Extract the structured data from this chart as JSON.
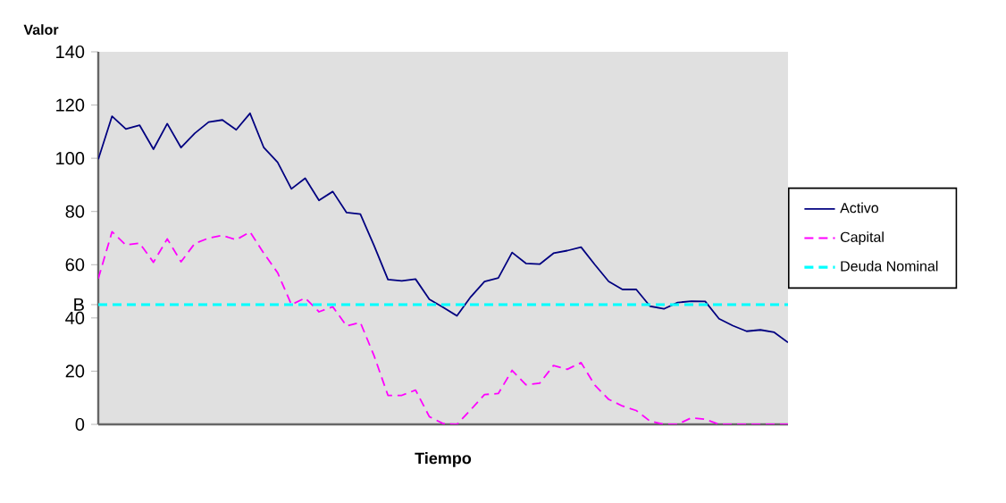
{
  "chart_data": {
    "type": "line",
    "xlabel": "Tiempo",
    "ylabel": "Valor",
    "categories": [
      null,
      null,
      null,
      null,
      null,
      null,
      null,
      null,
      null,
      null,
      null,
      null,
      null,
      null,
      null,
      null,
      null,
      null,
      null,
      null,
      null,
      null,
      null,
      null,
      null,
      null,
      null,
      null,
      null,
      null,
      null,
      null,
      null,
      null,
      null,
      null,
      null,
      null,
      null,
      null,
      null,
      null,
      null,
      null,
      null,
      null,
      null,
      null,
      null,
      null,
      null
    ],
    "ylim": [
      0,
      140
    ],
    "yticks": [
      0,
      20,
      40,
      {
        "value": 45,
        "label": "B"
      },
      60,
      80,
      100,
      120,
      140
    ],
    "grid": false,
    "legend": "right",
    "marker": "none",
    "series": [
      {
        "name": "Activo",
        "color": "#000080",
        "line_style": "solid",
        "values": [
          99.6,
          115.8,
          111,
          112.4,
          103.4,
          113,
          104,
          109.4,
          113.6,
          114.4,
          110.7,
          116.9,
          104,
          98.5,
          88.5,
          92.5,
          84.2,
          87.5,
          79.6,
          79,
          67.1,
          54.4,
          53.9,
          54.6,
          47,
          44,
          40.8,
          47.9,
          53.7,
          55,
          64.6,
          60.5,
          60.2,
          64.3,
          65.3,
          66.6,
          60,
          53.7,
          50.7,
          50.7,
          44.4,
          43.4,
          45.8,
          46.3,
          46.2,
          39.7,
          37.1,
          35,
          35.5,
          34.6,
          30.8
        ]
      },
      {
        "name": "Capital",
        "color": "#ff00ff",
        "line_style": "dashed",
        "values": [
          54.8,
          72.4,
          67.4,
          68.1,
          60.9,
          69.7,
          61.1,
          68,
          70,
          71,
          69.4,
          72.3,
          64.3,
          57,
          45,
          47.5,
          42.3,
          44.2,
          37,
          38.3,
          25.7,
          10.9,
          10.9,
          12.9,
          2.9,
          0.3,
          0,
          5.5,
          11.2,
          11.6,
          20.3,
          14.9,
          15.5,
          22.1,
          20.7,
          23.2,
          14.7,
          9.4,
          6.9,
          5.2,
          1.2,
          0,
          0,
          2.5,
          1.9,
          0,
          0,
          0,
          0,
          0,
          0
        ]
      },
      {
        "name": "Deuda Nominal",
        "color": "#00ffff",
        "line_style": "dashed",
        "values": [
          45,
          45,
          45,
          45,
          45,
          45,
          45,
          45,
          45,
          45,
          45,
          45,
          45,
          45,
          45,
          45,
          45,
          45,
          45,
          45,
          45,
          45,
          45,
          45,
          45,
          45,
          45,
          45,
          45,
          45,
          45,
          45,
          45,
          45,
          45,
          45,
          45,
          45,
          45,
          45,
          45,
          45,
          45,
          45,
          45,
          45,
          45,
          45,
          45,
          45,
          45
        ]
      }
    ]
  }
}
